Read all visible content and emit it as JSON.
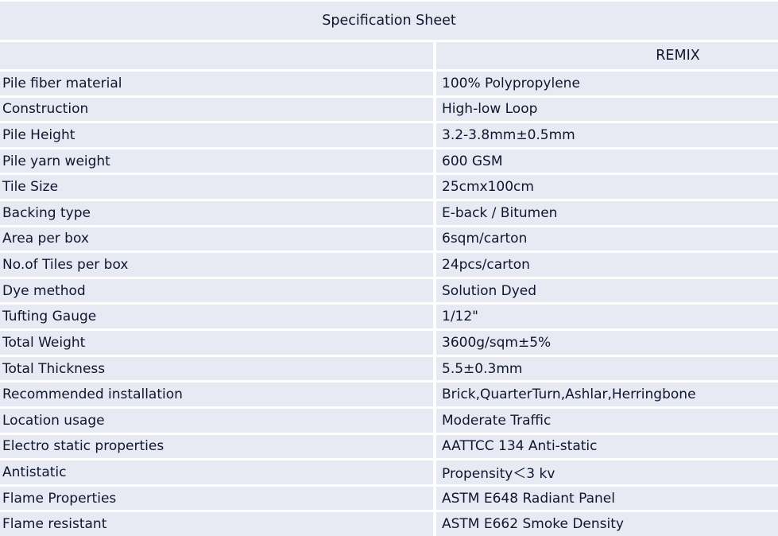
{
  "title": "Specification Sheet",
  "header": {
    "label_column": "",
    "product_column": "REMIX"
  },
  "colors": {
    "row_background": "#e7e9f3",
    "divider": "#ffffff",
    "text": "#10162f"
  },
  "rows": [
    {
      "label": "Pile fiber material",
      "value": "100% Polypropylene"
    },
    {
      "label": "Construction",
      "value": "High-low Loop"
    },
    {
      "label": "Pile Height",
      "value": "3.2-3.8mm±0.5mm"
    },
    {
      "label": "Pile yarn weight",
      "value": "600 GSM"
    },
    {
      "label": "Tile Size",
      "value": "25cmx100cm"
    },
    {
      "label": "Backing type",
      "value": "E-back / Bitumen"
    },
    {
      "label": "Area per box",
      "value": "6sqm/carton"
    },
    {
      "label": "No.of Tiles per box",
      "value": "24pcs/carton"
    },
    {
      "label": "Dye method",
      "value": "Solution Dyed"
    },
    {
      "label": "Tufting Gauge",
      "value": "1/12\""
    },
    {
      "label": "Total Weight",
      "value": "3600g/sqm±5%"
    },
    {
      "label": "Total Thickness",
      "value": "5.5±0.3mm"
    },
    {
      "label": "Recommended installation",
      "value": "Brick,QuarterTurn,Ashlar,Herringbone"
    },
    {
      "label": "Location usage",
      "value": "Moderate Traffic"
    },
    {
      "label": "Electro static properties",
      "value": "AATTCC 134 Anti-static"
    },
    {
      "label": "Antistatic",
      "value": "Propensity＜3 kv"
    },
    {
      "label": "Flame Properties",
      "value": "ASTM E648 Radiant Panel"
    },
    {
      "label": "Flame resistant",
      "value": "ASTM E662 Smoke Density"
    }
  ]
}
